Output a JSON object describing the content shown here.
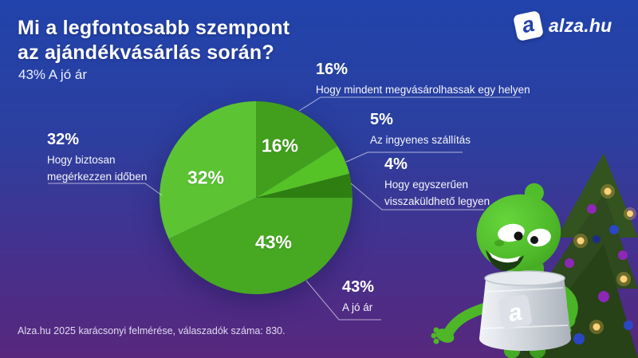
{
  "header": {
    "title_line1": "Mi a legfontosabb szempont",
    "title_line2": "az ajándékvásárlás során?",
    "subtitle": "43% A jó ár"
  },
  "logo": {
    "mark_letter": "a",
    "text": "alza.hu"
  },
  "chart_data": {
    "type": "pie",
    "title": "Mi a legfontosabb szempont az ajándékvásárlás során?",
    "unit": "%",
    "total": 100,
    "start_angle_deg": 0,
    "direction": "clockwise",
    "legend_position": "outside-callouts",
    "slices": [
      {
        "label": "Hogy mindent megvásárolhassak egy helyen",
        "value": 16,
        "display": "16%",
        "color": "#429f1d"
      },
      {
        "label": "Az ingyenes szállítás",
        "value": 5,
        "display": "5%",
        "color": "#55c226"
      },
      {
        "label": "Hogy egyszerűen visszaküldhető legyen",
        "value": 4,
        "display": "4%",
        "color": "#2e7e11"
      },
      {
        "label": "A jó ár",
        "value": 43,
        "display": "43%",
        "color": "#47a821"
      },
      {
        "label": "Hogy biztosan megérkezzen időben",
        "value": 32,
        "display": "32%",
        "color": "#5cc433"
      }
    ]
  },
  "callouts": {
    "one_place": {
      "pct": "16%",
      "line1": "Hogy mindent megvásárolhassak egy helyen"
    },
    "free_shipping": {
      "pct": "5%",
      "line1": "Az ingyenes szállítás"
    },
    "easy_return": {
      "pct": "4%",
      "line1": "Hogy egyszerűen",
      "line2": "visszaküldhető legyen"
    },
    "good_price": {
      "pct": "43%",
      "line1": "A jó ár"
    },
    "on_time": {
      "pct": "32%",
      "line1": "Hogy biztosan",
      "line2": "megérkezzen időben"
    }
  },
  "footer": {
    "source": "Alza.hu 2025 karácsonyi felmérése, válaszadók száma: 830."
  },
  "colors": {
    "background_top": "#2143ab",
    "background_bottom": "#57277d",
    "mascot_green": "#4db728",
    "text": "#ffffff"
  }
}
